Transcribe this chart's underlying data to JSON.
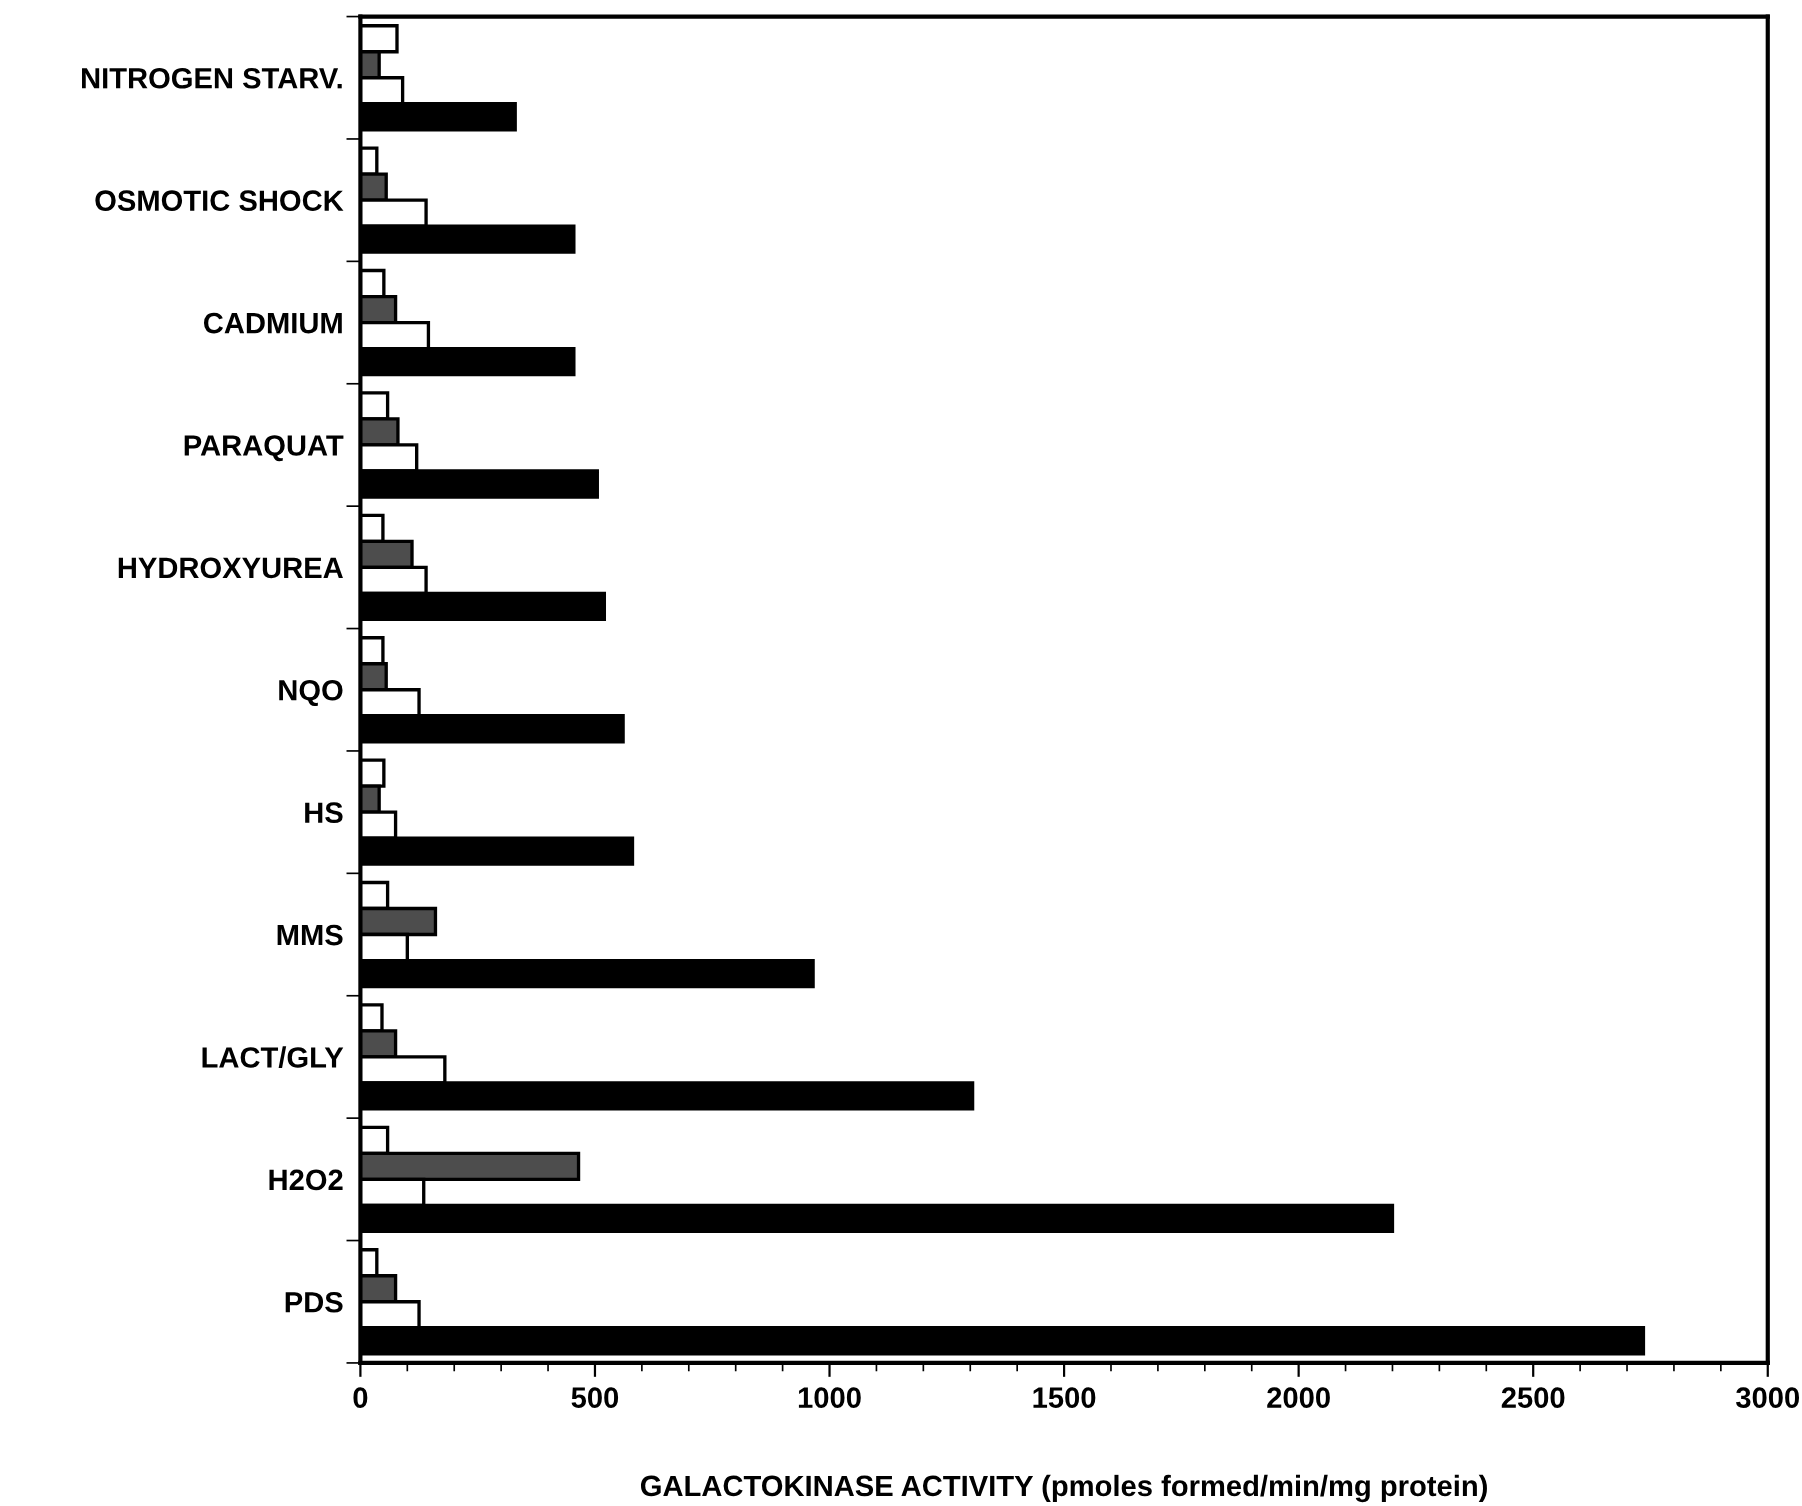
{
  "chart_data": {
    "type": "bar",
    "orientation": "horizontal",
    "xlabel": "GALACTOKINASE ACTIVITY (pmoles formed/min/mg protein)",
    "categories": [
      "NITROGEN STARV.",
      "OSMOTIC SHOCK",
      "CADMIUM",
      "PARAQUAT",
      "HYDROXYUREA",
      "NQO",
      "HS",
      "MMS",
      "LACT/GLY",
      "H2O2",
      "PDS"
    ],
    "series": [
      {
        "color": "#ffffff",
        "values": [
          78,
          35,
          50,
          58,
          48,
          48,
          50,
          58,
          46,
          58,
          35
        ]
      },
      {
        "color": "#4d4d4d",
        "values": [
          40,
          55,
          75,
          80,
          110,
          55,
          40,
          160,
          75,
          465,
          75
        ]
      },
      {
        "color": "#ffffff",
        "values": [
          90,
          140,
          145,
          120,
          140,
          125,
          75,
          100,
          180,
          135,
          125
        ]
      },
      {
        "color": "#000000",
        "values": [
          330,
          455,
          455,
          505,
          520,
          560,
          580,
          965,
          1305,
          2200,
          2735
        ]
      }
    ],
    "xlim": [
      0,
      3000
    ],
    "xticks": [
      0,
      500,
      1000,
      1500,
      2000,
      2500,
      3000
    ],
    "grid": false,
    "legend": false
  }
}
